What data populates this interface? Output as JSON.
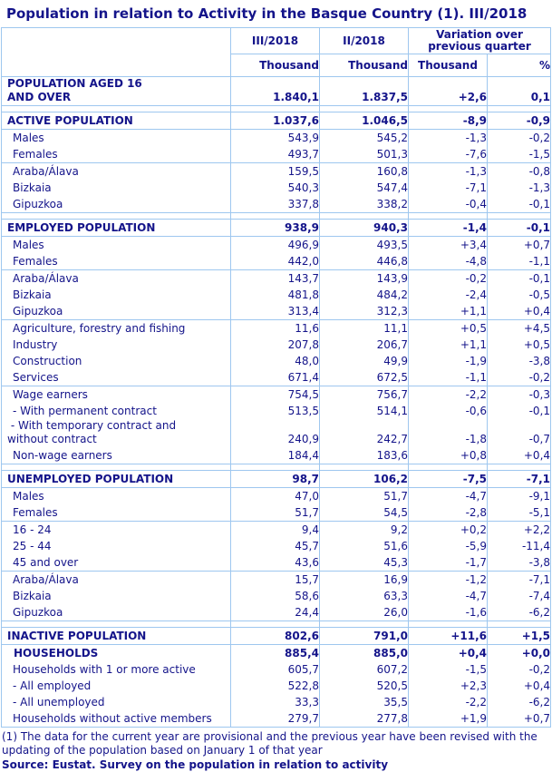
{
  "title": "Population in relation to Activity in the Basque Country (1). III/2018",
  "colors": {
    "text_navy": "#14148a",
    "table_border": "#9ec7ef"
  },
  "table": {
    "col_headers": {
      "current_quarter": "III/2018",
      "previous_quarter": "II/2018",
      "variation": "Variation over previous quarter"
    },
    "units": [
      "Thousand",
      "Thousand",
      "Thousand",
      "%"
    ],
    "rows": [
      {
        "label": "POPULATION AGED 16\nAND OVER",
        "values": [
          "1.840,1",
          "1.837,5",
          "+2,6",
          "0,1"
        ],
        "bold": true,
        "indent": 0,
        "divider_below": true
      },
      {
        "spacer": true
      },
      {
        "label": "ACTIVE POPULATION",
        "values": [
          "1.037,6",
          "1.046,5",
          "-8,9",
          "-0,9"
        ],
        "bold": true,
        "indent": 0,
        "divider_below": true
      },
      {
        "label": "Males",
        "values": [
          "543,9",
          "545,2",
          "-1,3",
          "-0,2"
        ],
        "bold": false,
        "indent": 1,
        "divider_below": false
      },
      {
        "label": "Females",
        "values": [
          "493,7",
          "501,3",
          "-7,6",
          "-1,5"
        ],
        "bold": false,
        "indent": 1,
        "divider_below": true
      },
      {
        "label": "Araba/Álava",
        "values": [
          "159,5",
          "160,8",
          "-1,3",
          "-0,8"
        ],
        "bold": false,
        "indent": 1,
        "divider_below": false
      },
      {
        "label": "Bizkaia",
        "values": [
          "540,3",
          "547,4",
          "-7,1",
          "-1,3"
        ],
        "bold": false,
        "indent": 1,
        "divider_below": false
      },
      {
        "label": "Gipuzkoa",
        "values": [
          "337,8",
          "338,2",
          "-0,4",
          "-0,1"
        ],
        "bold": false,
        "indent": 1,
        "divider_below": true
      },
      {
        "spacer": true
      },
      {
        "label": "EMPLOYED POPULATION",
        "values": [
          "938,9",
          "940,3",
          "-1,4",
          "-0,1"
        ],
        "bold": true,
        "indent": 0,
        "divider_below": true
      },
      {
        "label": "Males",
        "values": [
          "496,9",
          "493,5",
          "+3,4",
          "+0,7"
        ],
        "bold": false,
        "indent": 1,
        "divider_below": false
      },
      {
        "label": "Females",
        "values": [
          "442,0",
          "446,8",
          "-4,8",
          "-1,1"
        ],
        "bold": false,
        "indent": 1,
        "divider_below": true
      },
      {
        "label": "Araba/Álava",
        "values": [
          "143,7",
          "143,9",
          "-0,2",
          "-0,1"
        ],
        "bold": false,
        "indent": 1,
        "divider_below": false
      },
      {
        "label": "Bizkaia",
        "values": [
          "481,8",
          "484,2",
          "-2,4",
          "-0,5"
        ],
        "bold": false,
        "indent": 1,
        "divider_below": false
      },
      {
        "label": "Gipuzkoa",
        "values": [
          "313,4",
          "312,3",
          "+1,1",
          "+0,4"
        ],
        "bold": false,
        "indent": 1,
        "divider_below": true
      },
      {
        "label": "Agriculture, forestry and fishing",
        "values": [
          "11,6",
          "11,1",
          "+0,5",
          "+4,5"
        ],
        "bold": false,
        "indent": 1,
        "divider_below": false
      },
      {
        "label": "Industry",
        "values": [
          "207,8",
          "206,7",
          "+1,1",
          "+0,5"
        ],
        "bold": false,
        "indent": 1,
        "divider_below": false
      },
      {
        "label": "Construction",
        "values": [
          "48,0",
          "49,9",
          "-1,9",
          "-3,8"
        ],
        "bold": false,
        "indent": 1,
        "divider_below": false
      },
      {
        "label": "Services",
        "values": [
          "671,4",
          "672,5",
          "-1,1",
          "-0,2"
        ],
        "bold": false,
        "indent": 1,
        "divider_below": true
      },
      {
        "label": "Wage earners",
        "values": [
          "754,5",
          "756,7",
          "-2,2",
          "-0,3"
        ],
        "bold": false,
        "indent": 1,
        "divider_below": false
      },
      {
        "label": "- With permanent contract",
        "values": [
          "513,5",
          "514,1",
          "-0,6",
          "-0,1"
        ],
        "bold": false,
        "indent": 1,
        "divider_below": false
      },
      {
        "label": " - With temporary contract and\nwithout contract",
        "values": [
          "240,9",
          "242,7",
          "-1,8",
          "-0,7"
        ],
        "bold": false,
        "indent": 0,
        "divider_below": false
      },
      {
        "label": "Non-wage earners",
        "values": [
          "184,4",
          "183,6",
          "+0,8",
          "+0,4"
        ],
        "bold": false,
        "indent": 1,
        "divider_below": true
      },
      {
        "spacer": true
      },
      {
        "label": "UNEMPLOYED POPULATION",
        "values": [
          "98,7",
          "106,2",
          "-7,5",
          "-7,1"
        ],
        "bold": true,
        "indent": 0,
        "divider_below": true
      },
      {
        "label": "Males",
        "values": [
          "47,0",
          "51,7",
          "-4,7",
          "-9,1"
        ],
        "bold": false,
        "indent": 1,
        "divider_below": false
      },
      {
        "label": "Females",
        "values": [
          "51,7",
          "54,5",
          "-2,8",
          "-5,1"
        ],
        "bold": false,
        "indent": 1,
        "divider_below": true
      },
      {
        "label": "16 - 24",
        "values": [
          "9,4",
          "9,2",
          "+0,2",
          "+2,2"
        ],
        "bold": false,
        "indent": 1,
        "divider_below": false
      },
      {
        "label": "25 - 44",
        "values": [
          "45,7",
          "51,6",
          "-5,9",
          "-11,4"
        ],
        "bold": false,
        "indent": 1,
        "divider_below": false
      },
      {
        "label": "45 and over",
        "values": [
          "43,6",
          "45,3",
          "-1,7",
          "-3,8"
        ],
        "bold": false,
        "indent": 1,
        "divider_below": true
      },
      {
        "label": "Araba/Álava",
        "values": [
          "15,7",
          "16,9",
          "-1,2",
          "-7,1"
        ],
        "bold": false,
        "indent": 1,
        "divider_below": false
      },
      {
        "label": "Bizkaia",
        "values": [
          "58,6",
          "63,3",
          "-4,7",
          "-7,4"
        ],
        "bold": false,
        "indent": 1,
        "divider_below": false
      },
      {
        "label": "Gipuzkoa",
        "values": [
          "24,4",
          "26,0",
          "-1,6",
          "-6,2"
        ],
        "bold": false,
        "indent": 1,
        "divider_below": true
      },
      {
        "spacer": true
      },
      {
        "label": "INACTIVE POPULATION",
        "values": [
          "802,6",
          "791,0",
          "+11,6",
          "+1,5"
        ],
        "bold": true,
        "indent": 0,
        "divider_below": true
      },
      {
        "label": "HOUSEHOLDS",
        "values": [
          "885,4",
          "885,0",
          "+0,4",
          "+0,0"
        ],
        "bold": true,
        "indent": 2,
        "divider_below": false
      },
      {
        "label": "Households with 1 or more active",
        "values": [
          "605,7",
          "607,2",
          "-1,5",
          "-0,2"
        ],
        "bold": false,
        "indent": 1,
        "divider_below": false
      },
      {
        "label": "- All employed",
        "values": [
          "522,8",
          "520,5",
          "+2,3",
          "+0,4"
        ],
        "bold": false,
        "indent": 1,
        "divider_below": false
      },
      {
        "label": "- All unemployed",
        "values": [
          "33,3",
          "35,5",
          "-2,2",
          "-6,2"
        ],
        "bold": false,
        "indent": 1,
        "divider_below": false
      },
      {
        "label": "Households without active members",
        "values": [
          "279,7",
          "277,8",
          "+1,9",
          "+0,7"
        ],
        "bold": false,
        "indent": 1,
        "divider_below": false
      }
    ]
  },
  "footnote": "(1) The data for the current year are provisional and the previous year have been revised with the updating of the population based on January 1 of that year",
  "source": "Source: Eustat. Survey on the population in relation to activity"
}
